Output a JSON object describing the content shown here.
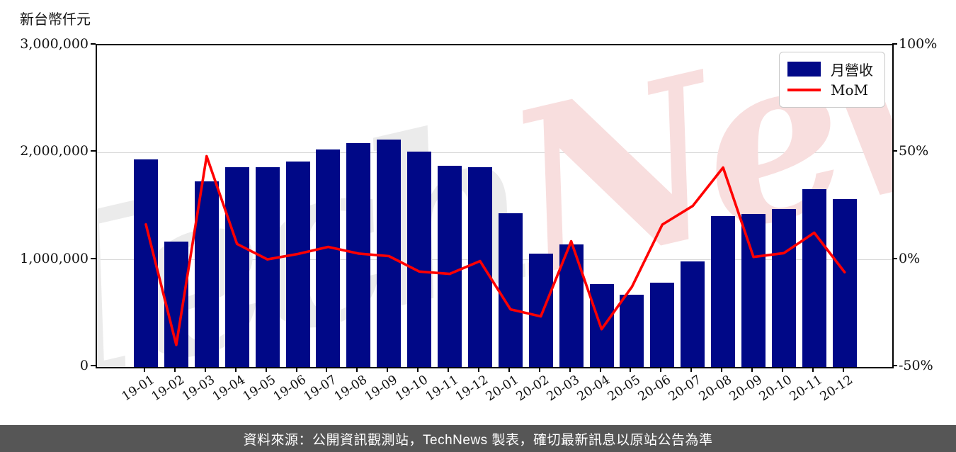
{
  "title_note": "新台幣仟元",
  "legend": {
    "bar_label": "月營收",
    "line_label": "MoM"
  },
  "watermark": {
    "part_gray": "Tech",
    "part_red": "News"
  },
  "footer": {
    "text": "資料來源：公開資訊觀測站，TechNews 製表，確切最新訊息以原站公告為準"
  },
  "colors": {
    "bar": "#000887",
    "bar_legend": "#000887",
    "line": "#ff0000",
    "grid": "#d8d8d8",
    "watermark_gray": "#ebebeb",
    "watermark_red": "#f8dede",
    "footer_bg": "#565656",
    "footer_text": "#ffffff"
  },
  "chart_data": {
    "type": "bar",
    "title": "新台幣仟元",
    "categories": [
      "19-01",
      "19-02",
      "19-03",
      "19-04",
      "19-05",
      "19-06",
      "19-07",
      "19-08",
      "19-09",
      "19-10",
      "19-11",
      "19-12",
      "20-01",
      "20-02",
      "20-03",
      "20-04",
      "20-05",
      "20-06",
      "20-07",
      "20-08",
      "20-09",
      "20-10",
      "20-11",
      "20-12"
    ],
    "series": [
      {
        "name": "月營收",
        "type": "bar",
        "y_axis": "left",
        "unit": "新台幣仟元",
        "values": [
          1935000,
          1168000,
          1732000,
          1861000,
          1865000,
          1916000,
          2031000,
          2089000,
          2124000,
          2008000,
          1876000,
          1865000,
          1434000,
          1055000,
          1146000,
          775000,
          677000,
          788000,
          986000,
          1410000,
          1429000,
          1473000,
          1659000,
          1563000
        ]
      },
      {
        "name": "MoM",
        "type": "line",
        "y_axis": "right",
        "unit": "%",
        "values": [
          16.5,
          -39.7,
          48.3,
          7.4,
          0.2,
          2.7,
          6.0,
          2.9,
          1.7,
          -5.5,
          -6.6,
          -0.6,
          -23.1,
          -26.4,
          8.6,
          -32.4,
          -12.6,
          16.4,
          25.1,
          43.0,
          1.3,
          3.1,
          12.6,
          -5.8
        ]
      }
    ],
    "left_axis": {
      "label": "新台幣仟元",
      "tick_labels": [
        "0",
        "1,000,000",
        "2,000,000",
        "3,000,000"
      ],
      "tick_values": [
        0,
        1000000,
        2000000,
        3000000
      ],
      "range": [
        0,
        3000000
      ]
    },
    "right_axis": {
      "tick_labels": [
        "-50%",
        "0%",
        "50%",
        "100%"
      ],
      "tick_values": [
        -50,
        0,
        50,
        100
      ],
      "range": [
        -50,
        100
      ]
    },
    "gridlines": {
      "horizontal_values": [
        1000000,
        2000000
      ]
    },
    "legend_position": "upper right",
    "x_label_rotation_deg": -33
  }
}
